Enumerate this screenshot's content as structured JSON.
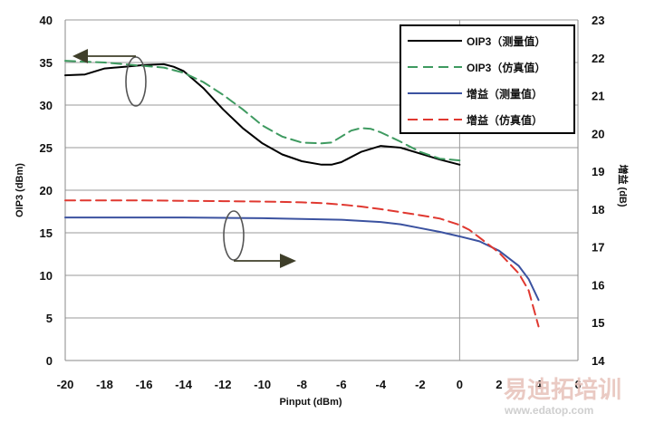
{
  "chart_data": {
    "type": "line",
    "x_axis": {
      "label": "Pinput (dBm)",
      "range": [
        -20,
        6
      ],
      "ticks": [
        -20,
        -18,
        -16,
        -14,
        -12,
        -10,
        -8,
        -6,
        -4,
        -2,
        0,
        2,
        4,
        6
      ],
      "marker_line_at": 0
    },
    "y_left": {
      "label": "OIP3 (dBm)",
      "range": [
        0,
        40
      ],
      "ticks": [
        0,
        5,
        10,
        15,
        20,
        25,
        30,
        35,
        40
      ]
    },
    "y_right": {
      "label": "增益 (dB)",
      "range": [
        14,
        23
      ],
      "ticks": [
        14,
        15,
        16,
        17,
        18,
        19,
        20,
        21,
        22,
        23
      ]
    },
    "series": [
      {
        "name": "OIP3（测量值）",
        "axis": "left",
        "color": "#000000",
        "dash": "solid",
        "x": [
          -20,
          -19,
          -18,
          -17,
          -16,
          -15,
          -14.5,
          -14,
          -13,
          -12,
          -11,
          -10,
          -9,
          -8,
          -7,
          -6.5,
          -6,
          -5,
          -4,
          -3,
          -2,
          -1,
          0
        ],
        "y": [
          33.5,
          33.6,
          34.3,
          34.5,
          34.7,
          34.8,
          34.5,
          34.0,
          32.0,
          29.5,
          27.3,
          25.5,
          24.2,
          23.4,
          23.0,
          23.0,
          23.3,
          24.5,
          25.2,
          25.0,
          24.3,
          23.6,
          23.0
        ]
      },
      {
        "name": "OIP3（仿真值）",
        "axis": "left",
        "color": "#3e9a60",
        "dash": "dashed",
        "x": [
          -20,
          -18,
          -16,
          -15,
          -14,
          -13,
          -12,
          -11,
          -10,
          -9,
          -8,
          -7,
          -6.5,
          -6,
          -5.5,
          -5,
          -4.5,
          -4,
          -3,
          -2,
          -1,
          0
        ],
        "y": [
          35.2,
          35.0,
          34.6,
          34.4,
          33.8,
          32.7,
          31.2,
          29.5,
          27.6,
          26.3,
          25.6,
          25.5,
          25.6,
          26.3,
          27.0,
          27.3,
          27.2,
          26.8,
          25.7,
          24.5,
          23.7,
          23.5
        ]
      },
      {
        "name": "增益（测量值）",
        "axis": "right",
        "color": "#3b52a0",
        "dash": "solid",
        "x": [
          -20,
          -16,
          -14,
          -12,
          -10,
          -8,
          -6,
          -4,
          -3,
          -2,
          -1,
          0,
          1,
          2,
          3,
          3.5,
          4
        ],
        "y": [
          17.78,
          17.78,
          17.78,
          17.77,
          17.76,
          17.74,
          17.72,
          17.66,
          17.6,
          17.5,
          17.4,
          17.28,
          17.15,
          16.9,
          16.5,
          16.15,
          15.6
        ]
      },
      {
        "name": "增益（仿真值）",
        "axis": "right",
        "color": "#e03830",
        "dash": "dashed",
        "x": [
          -20,
          -16,
          -14,
          -12,
          -10,
          -8,
          -7,
          -6,
          -5,
          -4,
          -3,
          -2,
          -1,
          0,
          0.5,
          1,
          2,
          3,
          3.5,
          4
        ],
        "y": [
          18.23,
          18.23,
          18.22,
          18.21,
          18.2,
          18.18,
          18.16,
          18.12,
          18.07,
          18.0,
          17.92,
          17.84,
          17.75,
          17.58,
          17.45,
          17.25,
          16.85,
          16.3,
          15.85,
          14.9
        ]
      }
    ],
    "legend_position": "top-right",
    "annotations": [
      {
        "type": "ellipse_with_arrow",
        "target_axis": "left",
        "arrow": "points-left"
      },
      {
        "type": "ellipse_with_arrow",
        "target_axis": "right",
        "arrow": "points-right"
      }
    ],
    "grid": "horizontal"
  },
  "watermark": {
    "brand": "易迪拓培训",
    "url": "www.edatop.com"
  }
}
